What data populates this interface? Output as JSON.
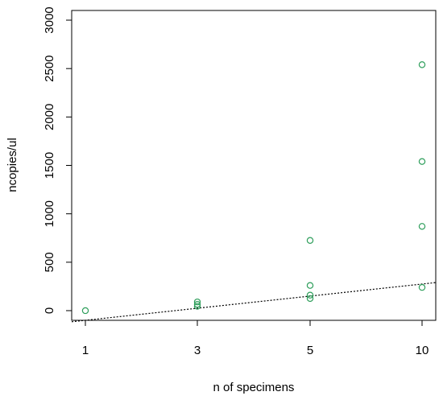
{
  "chart_data": {
    "type": "scatter",
    "title": "",
    "xlabel": "n of specimens",
    "ylabel": "ncopies/ul",
    "x_categories": [
      "1",
      "3",
      "5",
      "10"
    ],
    "ylim": [
      -100,
      3100
    ],
    "yticks": [
      0,
      500,
      1000,
      1500,
      2000,
      2500,
      3000
    ],
    "grid": false,
    "legend": "none",
    "point_color": "#2e9e5b",
    "series": [
      {
        "points": [
          {
            "x": "1",
            "y": 0
          },
          {
            "x": "3",
            "y": 90
          },
          {
            "x": "3",
            "y": 65
          },
          {
            "x": "3",
            "y": 45
          },
          {
            "x": "5",
            "y": 725
          },
          {
            "x": "5",
            "y": 260
          },
          {
            "x": "5",
            "y": 160
          },
          {
            "x": "5",
            "y": 125
          },
          {
            "x": "10",
            "y": 2540
          },
          {
            "x": "10",
            "y": 1540
          },
          {
            "x": "10",
            "y": 870
          },
          {
            "x": "10",
            "y": 240
          }
        ]
      }
    ],
    "trendline": {
      "style": "dotted",
      "color": "#000000",
      "x_start": 0.5,
      "y_start": -115,
      "x_end": 10.5,
      "y_end": 290
    }
  }
}
